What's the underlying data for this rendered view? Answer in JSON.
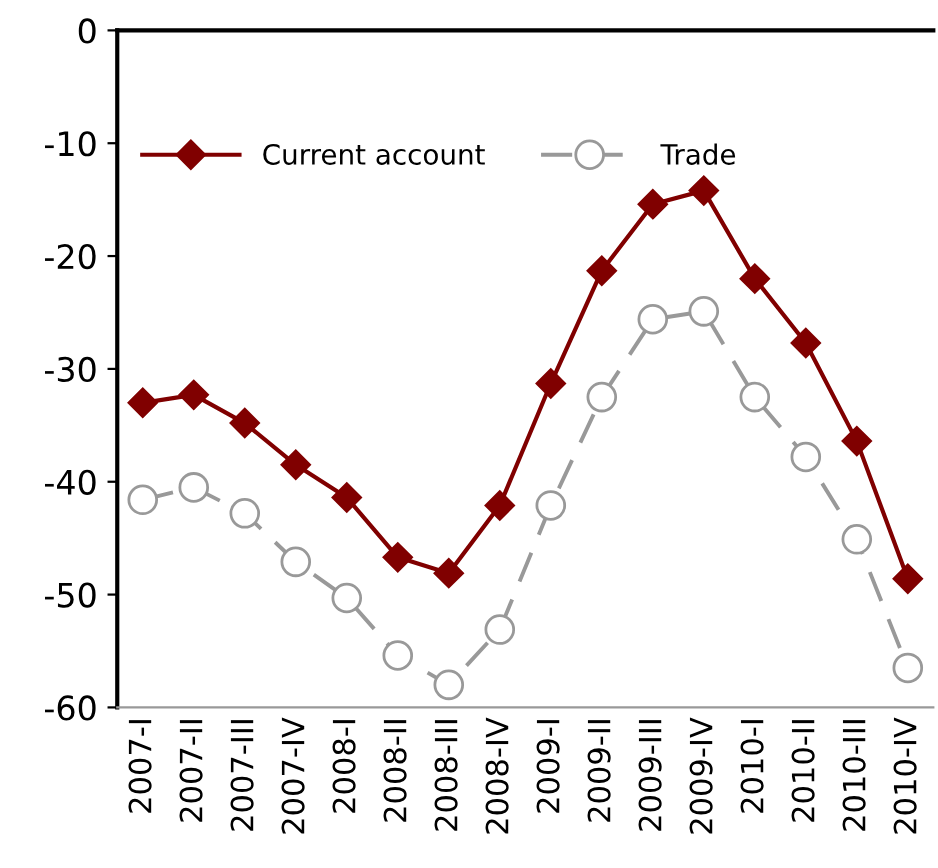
{
  "chart_data": {
    "type": "line",
    "categories": [
      "2007-I",
      "2007-II",
      "2007-III",
      "2007-IV",
      "2008-I",
      "2008-II",
      "2008-III",
      "2008-IV",
      "2009-I",
      "2009-II",
      "2009-III",
      "2009-IV",
      "2010-I",
      "2010-II",
      "2010-III",
      "2010-IV"
    ],
    "series": [
      {
        "name": "Current account",
        "color": "#800000",
        "marker": "diamond",
        "line_style": "solid",
        "values": [
          -33.0,
          -32.3,
          -34.8,
          -38.5,
          -41.4,
          -46.7,
          -48.1,
          -42.1,
          -31.3,
          -21.3,
          -15.4,
          -14.2,
          -22.0,
          -27.7,
          -36.4,
          -48.6
        ]
      },
      {
        "name": "Trade",
        "color": "#999999",
        "marker": "circle",
        "line_style": "dashed",
        "values": [
          -41.6,
          -40.5,
          -42.8,
          -47.1,
          -50.3,
          -55.4,
          -58.0,
          -53.1,
          -42.1,
          -32.5,
          -25.6,
          -24.9,
          -32.5,
          -37.8,
          -45.1,
          -56.5
        ]
      }
    ],
    "ylim": [
      -60,
      0
    ],
    "yticks": [
      -60,
      -50,
      -40,
      -30,
      -20,
      -10,
      0
    ],
    "grid": false,
    "legend": "top left"
  }
}
